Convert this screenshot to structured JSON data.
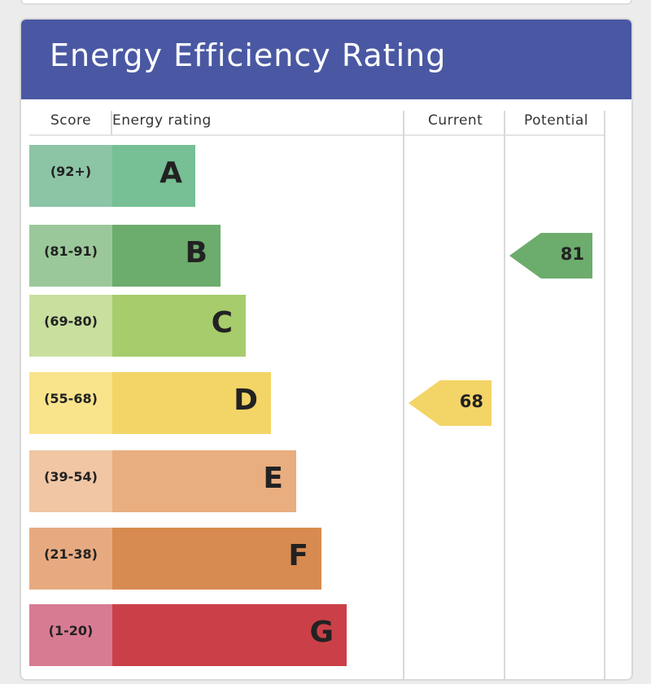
{
  "title": "Energy Efficiency Rating",
  "columns": {
    "score": "Score",
    "rating": "Energy rating",
    "current": "Current",
    "potential": "Potential"
  },
  "chart_data": {
    "type": "bar",
    "bands": [
      {
        "letter": "A",
        "range": "(92+)",
        "level": 1,
        "score_color": "#8cc4a6",
        "bar_color": "#77bf94"
      },
      {
        "letter": "B",
        "range": "(81-91)",
        "level": 2,
        "score_color": "#9bc89a",
        "bar_color": "#6cac6c"
      },
      {
        "letter": "C",
        "range": "(69-80)",
        "level": 3,
        "score_color": "#c8df9e",
        "bar_color": "#a7cc6c"
      },
      {
        "letter": "D",
        "range": "(55-68)",
        "level": 4,
        "score_color": "#f9e48b",
        "bar_color": "#f3d466"
      },
      {
        "letter": "E",
        "range": "(39-54)",
        "level": 5,
        "score_color": "#f0c6a4",
        "bar_color": "#e9ae7f"
      },
      {
        "letter": "F",
        "range": "(21-38)",
        "level": 6,
        "score_color": "#e7aa80",
        "bar_color": "#d88b50"
      },
      {
        "letter": "G",
        "range": "(1-20)",
        "level": 7,
        "score_color": "#d77b92",
        "bar_color": "#cb4048"
      }
    ],
    "current": {
      "value": 68,
      "band": "D",
      "color": "#f3d466"
    },
    "potential": {
      "value": 81,
      "band": "B",
      "color": "#6cac6c"
    }
  }
}
